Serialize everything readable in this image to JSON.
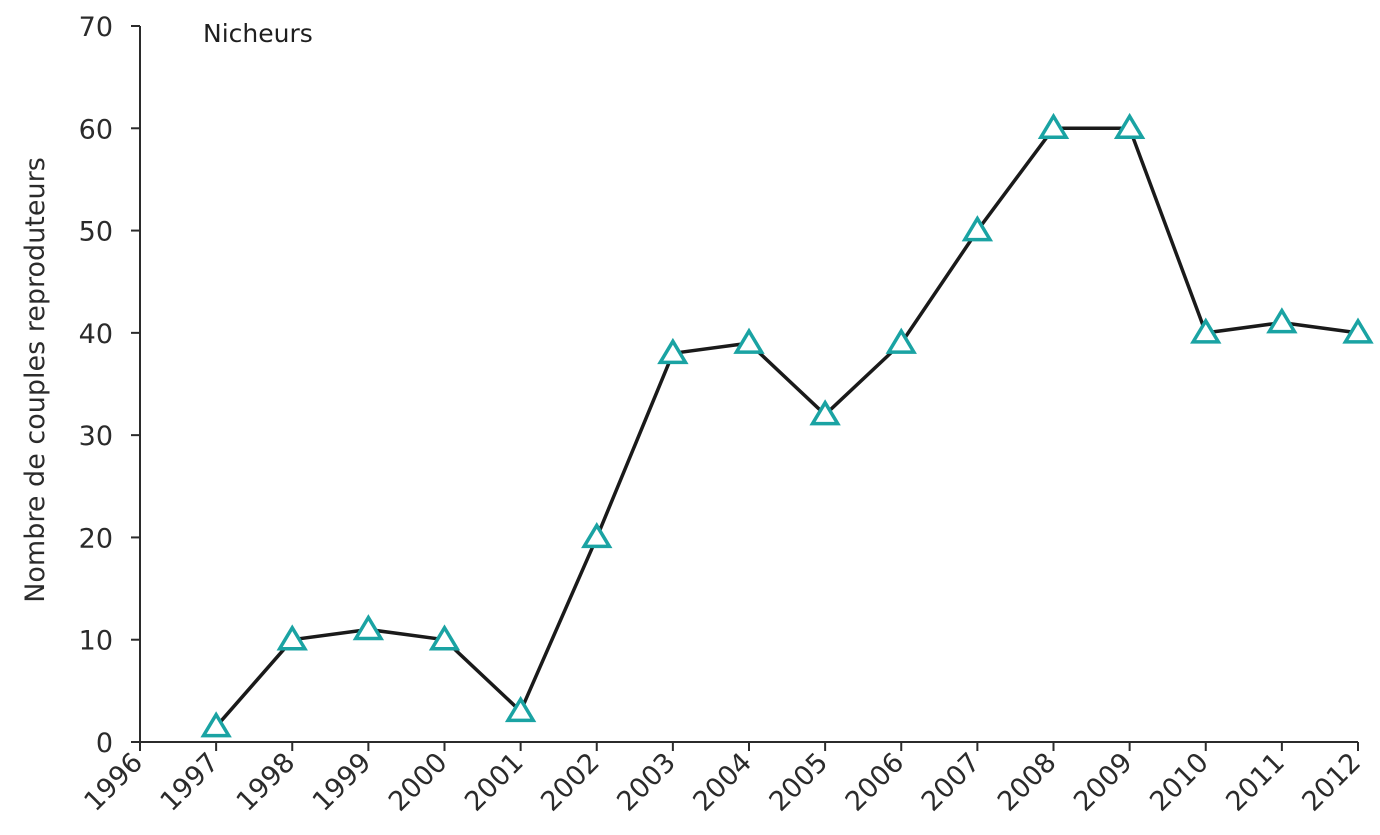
{
  "chart_data": {
    "type": "line",
    "title": "Nicheurs",
    "xlabel": "",
    "ylabel": "Nombre de couples reproduteurs",
    "x_ticks": [
      "1996",
      "1997",
      "1998",
      "1999",
      "2000",
      "2001",
      "2002",
      "2003",
      "2004",
      "2005",
      "2006",
      "2007",
      "2008",
      "2009",
      "2010",
      "2011",
      "2012"
    ],
    "y_ticks": [
      0,
      10,
      20,
      30,
      40,
      50,
      60,
      70
    ],
    "xlim": [
      1996,
      2012
    ],
    "ylim": [
      0,
      70
    ],
    "grid": false,
    "series": [
      {
        "x": [
          1997,
          1998,
          1999,
          2000,
          2001,
          2002,
          2003,
          2004,
          2005,
          2006,
          2007,
          2008,
          2009,
          2010,
          2011,
          2012
        ],
        "y": [
          1.5,
          10,
          11,
          10,
          3,
          20,
          38,
          39,
          32,
          39,
          50,
          60,
          60,
          40,
          41,
          40
        ],
        "line_color": "#1a1a1a",
        "marker": "triangle-open",
        "marker_color": "#1aa3a3"
      }
    ]
  }
}
